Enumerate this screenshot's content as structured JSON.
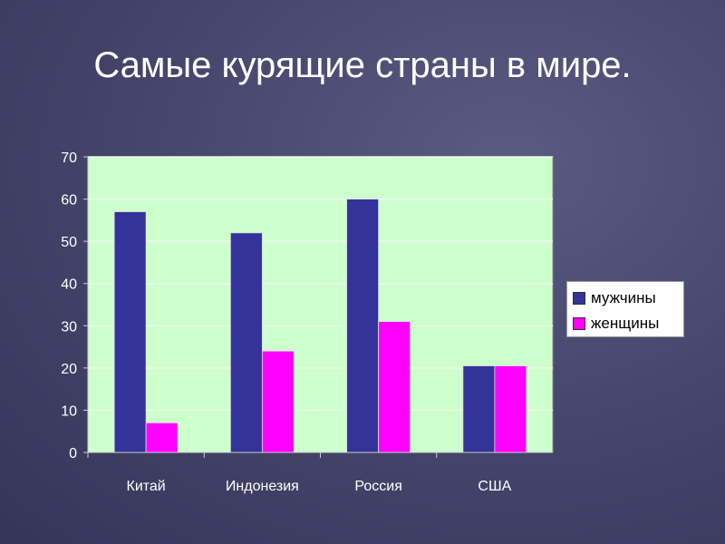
{
  "title": "Самые курящие страны в мире.",
  "chart_data": {
    "type": "bar",
    "title": "Самые курящие страны в мире.",
    "categories": [
      "Китай",
      "Индонезия",
      "Россия",
      "США"
    ],
    "series": [
      {
        "name": "мужчины",
        "color": "#333399",
        "values": [
          57,
          52,
          60,
          20.5
        ]
      },
      {
        "name": "женщины",
        "color": "#ff00ff",
        "values": [
          7,
          24,
          31,
          20.5
        ]
      }
    ],
    "ylim": [
      0,
      70
    ],
    "yticks": [
      0,
      10,
      20,
      30,
      40,
      50,
      60,
      70
    ],
    "grid": true,
    "legend": "right",
    "plot_background": "#ccffcc"
  }
}
